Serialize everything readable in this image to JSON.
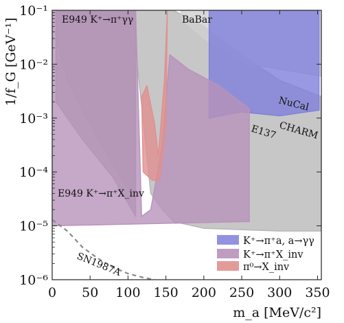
{
  "chart_data": {
    "type": "area",
    "title": "",
    "xlabel": "m_a [MeV/c²]",
    "ylabel": "1/f_G [GeV⁻¹]",
    "xlim": [
      0,
      355
    ],
    "ylim": [
      1e-06,
      0.1
    ],
    "yscale": "log",
    "grid": false,
    "legend_position": "bottom-right",
    "x_ticks": [
      0,
      50,
      100,
      150,
      200,
      250,
      300,
      350
    ],
    "y_ticks": [
      {
        "value": 1e-06,
        "label": "10⁻⁶"
      },
      {
        "value": 1e-05,
        "label": "10⁻⁵"
      },
      {
        "value": 0.0001,
        "label": "10⁻⁴"
      },
      {
        "value": 0.001,
        "label": "10⁻³"
      },
      {
        "value": 0.01,
        "label": "10⁻²"
      },
      {
        "value": 0.1,
        "label": "10⁻¹"
      }
    ],
    "legend": [
      {
        "label": "K⁺→π⁺a, a→γγ",
        "color": "#7f7fdc"
      },
      {
        "label": "K⁺→π⁺X_inv",
        "color": "#b892ba"
      },
      {
        "label": "π⁰→X_inv",
        "color": "#e0908e"
      }
    ],
    "annotations": [
      {
        "text": "E949 K⁺→π⁺γγ"
      },
      {
        "text": "BaBar"
      },
      {
        "text": "NuCal"
      },
      {
        "text": "CHARM"
      },
      {
        "text": "E137"
      },
      {
        "text": "E949 K⁺→π⁺X_inv"
      },
      {
        "text": "SN1987A"
      }
    ],
    "regions": [
      {
        "name": "grey-background-right",
        "color": "#b4b4b4",
        "x": [
          110,
          130,
          160,
          200,
          260,
          300,
          355,
          355,
          300,
          200,
          160,
          145,
          130,
          110
        ],
        "y": [
          0.1,
          0.1,
          0.1,
          0.05,
          0.012,
          0.005,
          0.0025,
          8e-06,
          8e-06,
          9e-06,
          1.2e-05,
          2e-05,
          4e-05,
          0.02
        ]
      },
      {
        "name": "grey-background-left",
        "color": "#b4b4b4",
        "x": [
          5,
          110,
          110,
          60,
          20,
          5
        ],
        "y": [
          0.1,
          0.1,
          3e-05,
          0.0004,
          0.005,
          0.03
        ]
      },
      {
        "name": "E949-gamma-gamma",
        "color": "#a0a0a0",
        "x": [
          5,
          110,
          110,
          80,
          40,
          5
        ],
        "y": [
          0.1,
          0.1,
          1.5e-05,
          8e-05,
          0.0004,
          0.002
        ]
      },
      {
        "name": "BaBar",
        "color": "#d0d0d0",
        "x": [
          170,
          355,
          355,
          260,
          200,
          170
        ],
        "y": [
          0.1,
          0.1,
          0.006,
          0.01,
          0.03,
          0.07
        ]
      },
      {
        "name": "K-pi-a-gamma-gamma",
        "color": "#7f7fdc",
        "x": [
          207,
          352,
          352,
          300,
          250,
          207
        ],
        "y": [
          0.1,
          0.1,
          0.0014,
          0.0011,
          0.0013,
          0.001
        ]
      },
      {
        "name": "K-pi-X-inv",
        "color": "#b892ba",
        "x": [
          0,
          110,
          118,
          130,
          145,
          155,
          180,
          220,
          260,
          260,
          0
        ],
        "y": [
          0.1,
          0.1,
          1.5e-05,
          2e-05,
          0.0003,
          0.015,
          0.008,
          0.004,
          0.0015,
          1.2e-05,
          1e-05
        ]
      },
      {
        "name": "pi0-X-inv",
        "color": "#e0908e",
        "x": [
          118,
          125,
          135,
          140,
          148,
          152,
          150,
          142,
          132,
          120
        ],
        "y": [
          0.0025,
          0.004,
          0.0008,
          0.0002,
          0.005,
          0.1,
          0.0008,
          7e-05,
          7e-05,
          0.0001
        ]
      }
    ],
    "lines": [
      {
        "name": "SN1987A",
        "style": "dashed",
        "color": "#888888",
        "x": [
          0,
          20,
          40,
          60,
          80,
          100,
          120,
          135
        ],
        "y": [
          1.3e-05,
          8e-06,
          4e-06,
          2.5e-06,
          1.7e-06,
          1.3e-06,
          1.1e-06,
          1e-06
        ]
      }
    ]
  }
}
